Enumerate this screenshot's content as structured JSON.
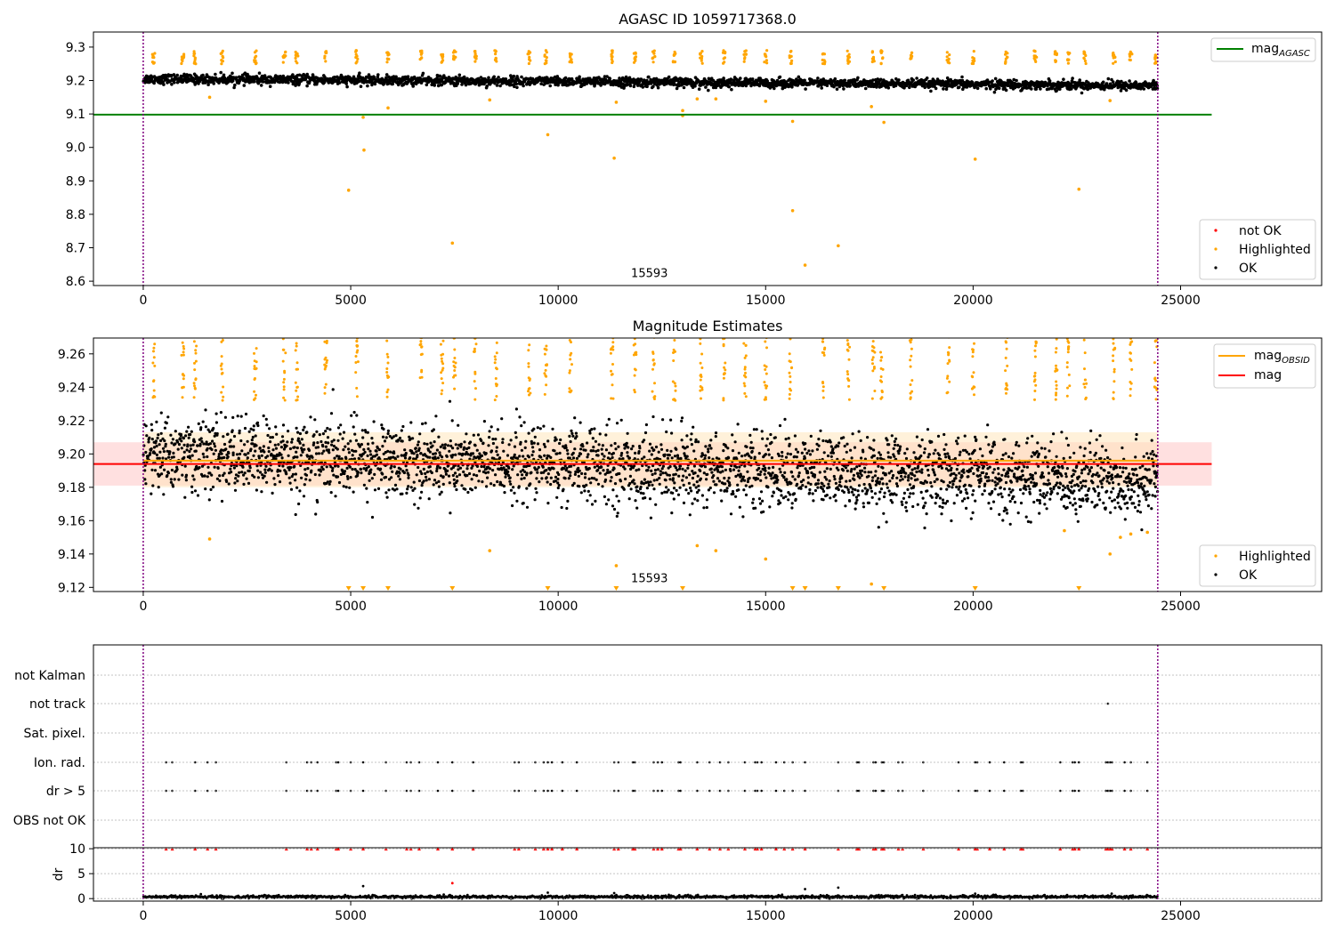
{
  "figure": {
    "background": "#ffffff",
    "colors": {
      "ok": "#000000",
      "highlighted": "#ffa500",
      "not_ok": "#ff0000",
      "agasc_line": "#008000",
      "mag_line": "#ff0000",
      "mag_obsid_line": "#ffa500",
      "mag_band": "#ffcccc",
      "mag_obsid_band": "#ffe4b5",
      "obs_boundary": "#800080",
      "grid": "#b0b0b0"
    }
  },
  "chart_data": [
    {
      "type": "scatter",
      "title": "AGASC ID 1059717368.0",
      "xlabel": "",
      "ylabel": "",
      "xlim": [
        -1200,
        28400
      ],
      "ylim": [
        8.587,
        9.345
      ],
      "xticks": [
        0,
        5000,
        10000,
        15000,
        20000,
        25000
      ],
      "yticks": [
        8.6,
        8.7,
        8.8,
        8.9,
        9.0,
        9.1,
        9.2,
        9.3
      ],
      "ytick_labels": [
        "8.6",
        "8.7",
        "8.8",
        "8.9",
        "9.0",
        "9.1",
        "9.2",
        "9.3"
      ],
      "obs_boundaries": [
        0,
        24450
      ],
      "obs_label": {
        "text": "15593",
        "x": 12200,
        "y": 8.612
      },
      "lines": [
        {
          "name": "mag",
          "subscript": "AGASC",
          "y": 9.098,
          "x_range": [
            -1200,
            25750
          ],
          "color": "#008000"
        }
      ],
      "ok_band": {
        "x_range": [
          0,
          24450
        ],
        "center_start": 9.205,
        "center_end": 9.185,
        "spread": 0.02
      },
      "highlighted_clusters": [
        250,
        950,
        1250,
        1900,
        2700,
        3400,
        3700,
        4400,
        5150,
        5900,
        6700,
        7200,
        7500,
        8000,
        8500,
        9300,
        9700,
        10300,
        11300,
        11850,
        12300,
        12800,
        13450,
        14000,
        14500,
        15000,
        15600,
        16400,
        17000,
        17600,
        17800,
        18500,
        19400,
        20000,
        20800,
        21500,
        22000,
        22300,
        22700,
        23400,
        23800,
        24400
      ],
      "highlighted_outliers": [
        {
          "x": 1600,
          "y": 9.15
        },
        {
          "x": 4950,
          "y": 8.872
        },
        {
          "x": 5300,
          "y": 9.09
        },
        {
          "x": 5320,
          "y": 8.992
        },
        {
          "x": 5900,
          "y": 9.118
        },
        {
          "x": 7450,
          "y": 8.714
        },
        {
          "x": 8350,
          "y": 9.142
        },
        {
          "x": 9750,
          "y": 9.038
        },
        {
          "x": 11350,
          "y": 8.968
        },
        {
          "x": 11400,
          "y": 9.135
        },
        {
          "x": 13000,
          "y": 9.11
        },
        {
          "x": 13000,
          "y": 9.095
        },
        {
          "x": 13350,
          "y": 9.145
        },
        {
          "x": 13800,
          "y": 9.145
        },
        {
          "x": 15000,
          "y": 9.138
        },
        {
          "x": 15650,
          "y": 9.078
        },
        {
          "x": 15650,
          "y": 8.811
        },
        {
          "x": 15950,
          "y": 8.648
        },
        {
          "x": 16750,
          "y": 8.706
        },
        {
          "x": 17550,
          "y": 9.122
        },
        {
          "x": 17850,
          "y": 9.075
        },
        {
          "x": 20050,
          "y": 8.965
        },
        {
          "x": 22550,
          "y": 8.875
        },
        {
          "x": 23300,
          "y": 9.14
        }
      ],
      "legends": [
        {
          "position": "top-right",
          "entries": [
            {
              "label": "mag",
              "subscript": "AGASC",
              "kind": "line",
              "color": "#008000"
            }
          ]
        },
        {
          "position": "bottom-right",
          "entries": [
            {
              "label": "not OK",
              "kind": "dot",
              "color": "#ff0000"
            },
            {
              "label": "Highlighted",
              "kind": "dot",
              "color": "#ffa500"
            },
            {
              "label": "OK",
              "kind": "dot",
              "color": "#000000"
            }
          ]
        }
      ]
    },
    {
      "type": "scatter",
      "title": "Magnitude Estimates",
      "xlabel": "",
      "ylabel": "",
      "xlim": [
        -1200,
        28400
      ],
      "ylim": [
        9.1175,
        9.2695
      ],
      "xticks": [
        0,
        5000,
        10000,
        15000,
        20000,
        25000
      ],
      "yticks": [
        9.12,
        9.14,
        9.16,
        9.18,
        9.2,
        9.22,
        9.24,
        9.26
      ],
      "ytick_labels": [
        "9.12",
        "9.14",
        "9.16",
        "9.18",
        "9.20",
        "9.22",
        "9.24",
        "9.26"
      ],
      "obs_boundaries": [
        0,
        24450
      ],
      "obs_label": {
        "text": "15593",
        "x": 12200,
        "y": 9.123
      },
      "lines": [
        {
          "name": "mag",
          "subscript": "OBSID",
          "y": 9.196,
          "x_range": [
            0,
            24450
          ],
          "color": "#ffa500"
        },
        {
          "name": "mag",
          "y": 9.194,
          "x_range": [
            -1200,
            25750
          ],
          "color": "#ff0000"
        }
      ],
      "mag_band": {
        "y_range": [
          9.181,
          9.207
        ],
        "x_range": [
          -1200,
          25750
        ]
      },
      "ok_band": {
        "x_range": [
          0,
          24450
        ],
        "center_start": 9.2,
        "center_end": 9.184,
        "spread": 0.02
      },
      "highlighted_clusters": [
        250,
        950,
        1250,
        1900,
        2700,
        3400,
        3700,
        4400,
        5150,
        5900,
        6700,
        7200,
        7500,
        8000,
        8500,
        9300,
        9700,
        10300,
        11300,
        11850,
        12300,
        12800,
        13450,
        14000,
        14500,
        15000,
        15600,
        16400,
        17000,
        17600,
        17800,
        18500,
        19400,
        20000,
        20800,
        21500,
        22000,
        22300,
        22700,
        23400,
        23800,
        24400
      ],
      "highlighted_outliers": [
        {
          "x": 1600,
          "y": 9.149
        },
        {
          "x": 8350,
          "y": 9.142
        },
        {
          "x": 11400,
          "y": 9.133
        },
        {
          "x": 13350,
          "y": 9.145
        },
        {
          "x": 13800,
          "y": 9.142
        },
        {
          "x": 15000,
          "y": 9.137
        },
        {
          "x": 17550,
          "y": 9.122
        },
        {
          "x": 23300,
          "y": 9.14
        },
        {
          "x": 23550,
          "y": 9.15
        },
        {
          "x": 23800,
          "y": 9.152
        },
        {
          "x": 24200,
          "y": 9.153
        },
        {
          "x": 22200,
          "y": 9.154
        }
      ],
      "below_range_markers": [
        4950,
        5300,
        5900,
        7450,
        9750,
        11400,
        13000,
        15650,
        15950,
        16750,
        17850,
        20050,
        22550
      ],
      "legends": [
        {
          "position": "top-right",
          "entries": [
            {
              "label": "mag",
              "subscript": "OBSID",
              "kind": "line",
              "color": "#ffa500"
            },
            {
              "label": "mag",
              "kind": "line",
              "color": "#ff0000"
            }
          ]
        },
        {
          "position": "bottom-right",
          "entries": [
            {
              "label": "Highlighted",
              "kind": "dot",
              "color": "#ffa500"
            },
            {
              "label": "OK",
              "kind": "dot",
              "color": "#000000"
            }
          ]
        }
      ]
    },
    {
      "type": "scatter",
      "title": "",
      "xlabel": "",
      "ylabel": "",
      "xlim": [
        -1200,
        28400
      ],
      "categories": [
        "not Kalman",
        "not track",
        "Sat. pixel.",
        "Ion. rad.",
        "dr > 5",
        "OBS not OK"
      ],
      "obs_boundaries": [
        0,
        24450
      ],
      "flag_positions": [
        550,
        700,
        1250,
        1550,
        1750,
        3450,
        3950,
        4050,
        4200,
        4650,
        4700,
        5000,
        5300,
        5850,
        6350,
        6450,
        6650,
        7100,
        7450,
        7950,
        8950,
        9050,
        9450,
        9650,
        9750,
        9850,
        10100,
        10450,
        11350,
        11450,
        11800,
        11850,
        12300,
        12400,
        12500,
        12900,
        12950,
        13350,
        13650,
        13900,
        14100,
        14500,
        14750,
        14800,
        14900,
        15250,
        15450,
        15650,
        15950,
        16750,
        17200,
        17250,
        17600,
        17650,
        17800,
        17850,
        18200,
        18300,
        18800,
        19650,
        20050,
        20100,
        20400,
        20750,
        21150,
        21200,
        22100,
        22400,
        22450,
        22550,
        23200,
        23250,
        23300,
        23350,
        23650,
        23800,
        24200
      ],
      "not_track_points": [
        23250
      ],
      "grid": true
    },
    {
      "type": "scatter",
      "title": "",
      "xlabel": "",
      "ylabel": "dr",
      "xlim": [
        -1200,
        28400
      ],
      "ylim": [
        -0.5,
        10.2
      ],
      "xticks": [
        0,
        5000,
        10000,
        15000,
        20000,
        25000
      ],
      "xtick_labels": [
        "0",
        "5000",
        "10000",
        "15000",
        "20000",
        "25000"
      ],
      "yticks": [
        0,
        5,
        10
      ],
      "ytick_labels": [
        "0",
        "5",
        "10"
      ],
      "obs_boundaries": [
        0,
        24450
      ],
      "cap_value": 10,
      "ok_band": {
        "x_range": [
          0,
          24450
        ],
        "center": 0.35,
        "spread": 0.3
      },
      "outliers": [
        {
          "x": 5300,
          "y": 2.5
        },
        {
          "x": 7450,
          "y": 3.1
        },
        {
          "x": 15950,
          "y": 1.9
        },
        {
          "x": 16750,
          "y": 2.2
        },
        {
          "x": 9750,
          "y": 1.2
        },
        {
          "x": 20050,
          "y": 1.0
        },
        {
          "x": 11350,
          "y": 1.1
        }
      ],
      "grid": true
    }
  ]
}
